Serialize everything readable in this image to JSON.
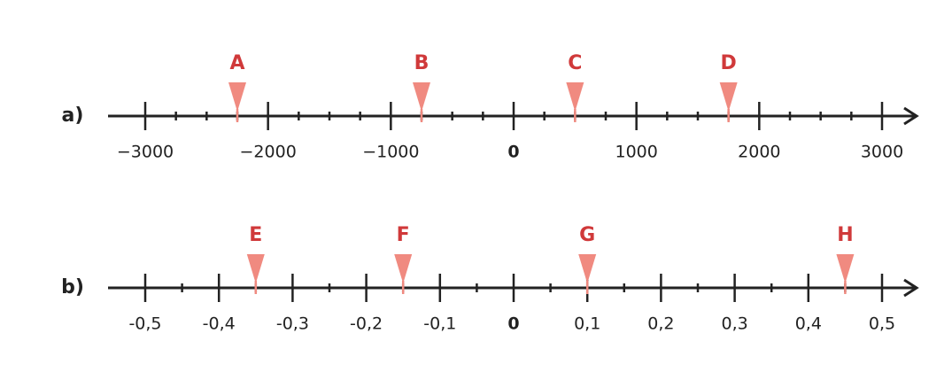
{
  "number_lines": [
    {
      "label": "a)",
      "xlim": [
        -3000,
        3000
      ],
      "ticks": [
        {
          "value": -3000,
          "label": "−3000"
        },
        {
          "value": -2000,
          "label": "−2000"
        },
        {
          "value": -1000,
          "label": "−1000"
        },
        0,
        1000,
        2000,
        3000
      ],
      "minor_ticks": [
        -2750,
        -2500,
        -2250,
        -1750,
        -1500,
        -1250,
        -750,
        -500,
        -250,
        250,
        500,
        750,
        1250,
        1500,
        1750,
        2250,
        2500,
        2750
      ],
      "points": [
        {
          "label": "A",
          "value": -2250
        },
        {
          "label": "B",
          "value": -750
        },
        {
          "label": "C",
          "value": 500
        },
        {
          "label": "D",
          "value": 1750
        }
      ]
    },
    {
      "label": "b)",
      "xlim": [
        -0.5,
        0.5
      ],
      "ticks": [
        {
          "value": -0.5,
          "label": "-0,5"
        },
        {
          "value": -0.4,
          "label": "-0,4"
        },
        {
          "value": -0.3,
          "label": "-0,3"
        },
        {
          "value": -0.2,
          "label": "-0,2"
        },
        {
          "value": -0.1,
          "label": "-0,1"
        },
        0,
        {
          "value": 0.1,
          "label": "0,1"
        },
        {
          "value": 0.2,
          "label": "0,2"
        },
        {
          "value": 0.3,
          "label": "0,3"
        },
        {
          "value": 0.4,
          "label": "0,4"
        },
        {
          "value": 0.5,
          "label": "0,5"
        }
      ],
      "minor_ticks": [
        -0.45,
        -0.35,
        -0.25,
        -0.15,
        -0.05,
        0.05,
        0.15,
        0.25,
        0.35,
        0.45
      ],
      "points": [
        {
          "label": "E",
          "value": -0.35
        },
        {
          "label": "F",
          "value": -0.15
        },
        {
          "label": "G",
          "value": 0.1
        },
        {
          "label": "H",
          "value": 0.45
        }
      ]
    }
  ]
}
